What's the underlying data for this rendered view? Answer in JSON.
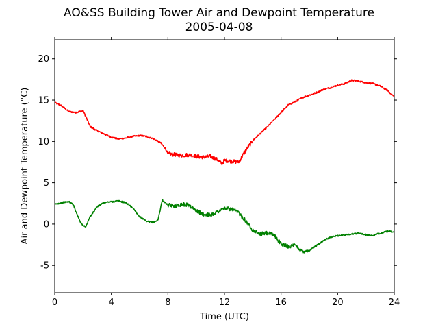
{
  "chart_data": {
    "type": "line",
    "title": "AO&SS Building Tower Air and Dewpoint Temperature",
    "subtitle": "2005-04-08",
    "xlabel": "Time (UTC)",
    "ylabel": "Air and Dewpoint Temperature (°C)",
    "xlim": [
      0,
      24
    ],
    "ylim": [
      -8.3,
      22.3
    ],
    "xticks": [
      0,
      4,
      8,
      12,
      16,
      20,
      24
    ],
    "yticks": [
      -5,
      0,
      5,
      10,
      15,
      20
    ],
    "grid": false,
    "legend": "none",
    "series": [
      {
        "color": "#ff0000",
        "x": [
          0,
          0.5,
          1,
          1.5,
          2,
          2.2,
          2.5,
          3,
          3.5,
          4,
          4.5,
          5,
          5.5,
          6,
          6.5,
          7,
          7.5,
          7.8,
          8,
          8.5,
          9,
          9.5,
          10,
          10.5,
          11,
          11.5,
          11.8,
          12,
          12.5,
          13,
          13.5,
          14,
          14.5,
          15,
          15.5,
          16,
          16.5,
          17,
          17.5,
          18,
          18.5,
          19,
          19.5,
          20,
          20.5,
          21,
          21.5,
          22,
          22.5,
          23,
          23.5,
          24
        ],
        "y": [
          14.7,
          14.3,
          13.6,
          13.5,
          13.7,
          13.0,
          11.8,
          11.3,
          10.9,
          10.5,
          10.3,
          10.4,
          10.6,
          10.7,
          10.6,
          10.3,
          9.8,
          9.2,
          8.5,
          8.4,
          8.3,
          8.4,
          8.2,
          8.1,
          8.2,
          7.8,
          7.3,
          7.7,
          7.6,
          7.5,
          8.9,
          10.1,
          10.9,
          11.7,
          12.6,
          13.5,
          14.4,
          14.8,
          15.3,
          15.6,
          15.9,
          16.3,
          16.5,
          16.8,
          17.0,
          17.4,
          17.3,
          17.1,
          17.0,
          16.7,
          16.2,
          15.4
        ]
      },
      {
        "color": "#008000",
        "x": [
          0,
          0.5,
          1,
          1.3,
          1.5,
          1.8,
          2,
          2.2,
          2.5,
          3,
          3.5,
          4,
          4.5,
          5,
          5.5,
          6,
          6.5,
          7,
          7.3,
          7.6,
          8,
          8.5,
          9,
          9.5,
          10,
          10.5,
          11,
          11.5,
          12,
          12.5,
          13,
          13.5,
          14,
          14.5,
          15,
          15.5,
          16,
          16.5,
          17,
          17.5,
          18,
          18.5,
          19,
          19.5,
          20,
          20.5,
          21,
          21.5,
          22,
          22.5,
          23,
          23.5,
          24
        ],
        "y": [
          2.4,
          2.6,
          2.7,
          2.4,
          1.5,
          0.3,
          -0.2,
          -0.3,
          0.9,
          2.1,
          2.6,
          2.7,
          2.8,
          2.6,
          2.0,
          0.9,
          0.3,
          0.2,
          0.5,
          2.9,
          2.3,
          2.2,
          2.4,
          2.3,
          1.6,
          1.2,
          1.1,
          1.5,
          1.9,
          1.8,
          1.4,
          0.4,
          -0.7,
          -1.2,
          -1.1,
          -1.3,
          -2.4,
          -2.7,
          -2.6,
          -3.3,
          -3.2,
          -2.6,
          -2.0,
          -1.6,
          -1.4,
          -1.3,
          -1.2,
          -1.1,
          -1.3,
          -1.4,
          -1.1,
          -0.9,
          -0.9
        ]
      }
    ]
  }
}
